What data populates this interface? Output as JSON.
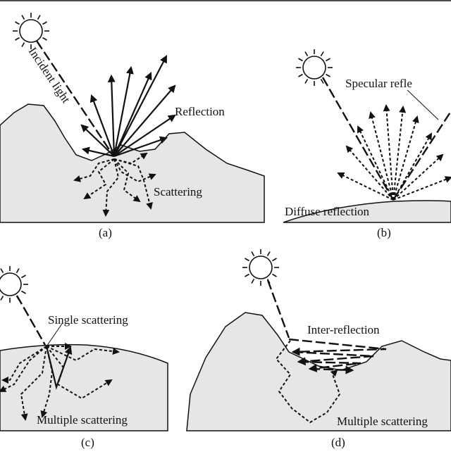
{
  "panels": {
    "a": {
      "caption": "(a)",
      "incident_label": "Incident light",
      "reflection_label": "Reflection",
      "scattering_label": "Scattering"
    },
    "b": {
      "caption": "(b)",
      "specular_label": "Specular refle",
      "diffuse_label": "Diffuse reflection"
    },
    "c": {
      "caption": "(c)",
      "single_label": "Single scattering",
      "multiple_label": "Multiple scattering"
    },
    "d": {
      "caption": "(d)",
      "inter_label": "Inter-reflection",
      "multiple_label": "Multiple scattering"
    }
  },
  "colors": {
    "surface_fill": "#e6e6e6",
    "ink": "#111111"
  },
  "icons": [
    "sun-icon"
  ]
}
